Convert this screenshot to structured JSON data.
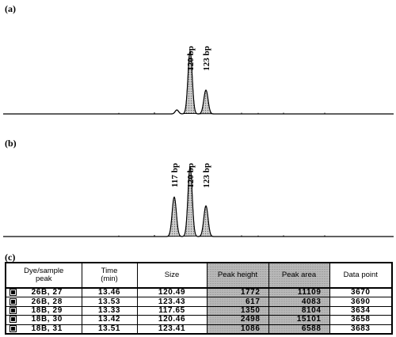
{
  "panels": {
    "a": {
      "label": "(a)"
    },
    "b": {
      "label": "(b)"
    },
    "c": {
      "label": "(c)"
    }
  },
  "colors": {
    "trace": "#000000",
    "peak_fill": "#bdbdbd",
    "shade": "#b8b8b8"
  },
  "chart_data": [
    {
      "type": "line",
      "panel": "(a)",
      "x_unit": "bp",
      "peaks": [
        {
          "label": "120 bp",
          "size": 120,
          "relative_height": 0.79
        },
        {
          "label": "123 bp",
          "size": 123,
          "relative_height": 0.3
        }
      ],
      "minor_peaks": [
        {
          "size": 117.5,
          "relative_height": 0.05
        }
      ]
    },
    {
      "type": "line",
      "panel": "(b)",
      "x_unit": "bp",
      "peaks": [
        {
          "label": "117 bp",
          "size": 117,
          "relative_height": 0.54
        },
        {
          "label": "120 bp",
          "size": 120,
          "relative_height": 0.95
        },
        {
          "label": "123 bp",
          "size": 123,
          "relative_height": 0.42
        }
      ]
    },
    {
      "type": "table",
      "panel": "(c)",
      "columns": [
        "Dye/sample peak",
        "Time (min)",
        "Size",
        "Peak height",
        "Peak area",
        "Data point"
      ],
      "rows": [
        [
          "26B, 27",
          "13.46",
          "120.49",
          "1772",
          "11109",
          "3670"
        ],
        [
          "26B, 28",
          "13.53",
          "123.43",
          "617",
          "4083",
          "3690"
        ],
        [
          "18B, 29",
          "13.33",
          "117.65",
          "1350",
          "8104",
          "3634"
        ],
        [
          "18B, 30",
          "13.42",
          "120.46",
          "2498",
          "15101",
          "3658"
        ],
        [
          "18B, 31",
          "13.51",
          "123.41",
          "1086",
          "6588",
          "3683"
        ]
      ]
    }
  ],
  "table": {
    "headers": {
      "dye_line1": "Dye/sample",
      "dye_line2": "peak",
      "time_line1": "Time",
      "time_line2": "(min)",
      "size": "Size",
      "height": "Peak height",
      "area": "Peak area",
      "datapoint": "Data point"
    }
  }
}
